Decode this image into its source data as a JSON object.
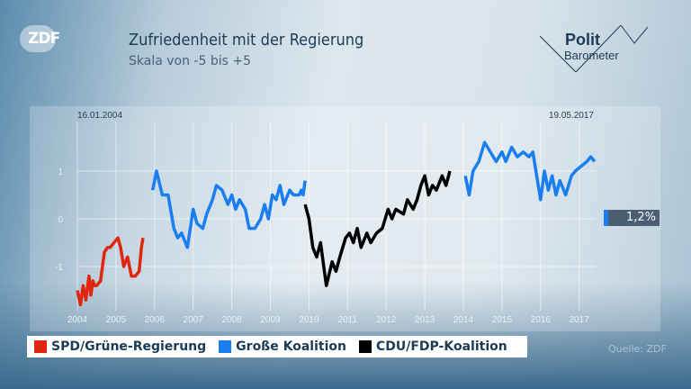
{
  "header": {
    "logo": "ZDF",
    "title": "Zufriedenheit mit der Regierung",
    "subtitle": "Skala von -5 bis +5",
    "brand_line1": "Polit",
    "brand_line2": "Barometer"
  },
  "source": "Quelle: ZDF",
  "badge": {
    "value": "1,2%",
    "color": "#1a7ef0"
  },
  "chart_data": {
    "type": "line",
    "title": "Zufriedenheit mit der Regierung",
    "subtitle": "Skala von -5 bis +5",
    "start_label": "16.01.2004",
    "end_label": "19.05.2017",
    "xlim": [
      2003.75,
      2018.0
    ],
    "ylim": [
      -2.05,
      2.45
    ],
    "x_ticks": [
      2004,
      2005,
      2006,
      2007,
      2008,
      2009,
      2010,
      2011,
      2012,
      2013,
      2014,
      2015,
      2016,
      2017
    ],
    "y_ticks": [
      1,
      0,
      -1
    ],
    "grid": true,
    "legend_position": "bottom",
    "series": [
      {
        "name": "SPD/Grüne-Regierung",
        "color": "#e0260e",
        "x": [
          2004.0,
          2004.08,
          2004.15,
          2004.22,
          2004.3,
          2004.35,
          2004.4,
          2004.45,
          2004.5,
          2004.6,
          2004.7,
          2004.78,
          2004.85,
          2004.95,
          2005.05,
          2005.12,
          2005.2,
          2005.3,
          2005.4,
          2005.5,
          2005.6,
          2005.66,
          2005.7
        ],
        "y": [
          -1.5,
          -1.8,
          -1.4,
          -1.7,
          -1.2,
          -1.6,
          -1.3,
          -1.4,
          -1.4,
          -1.3,
          -0.7,
          -0.6,
          -0.6,
          -0.5,
          -0.4,
          -0.6,
          -1.0,
          -0.8,
          -1.2,
          -1.2,
          -1.1,
          -0.6,
          -0.4
        ]
      },
      {
        "name": "Große Koalition",
        "color": "#1a7ef0",
        "x": [
          2005.95,
          2006.05,
          2006.2,
          2006.35,
          2006.5,
          2006.6,
          2006.7,
          2006.85,
          2007.0,
          2007.1,
          2007.25,
          2007.35,
          2007.5,
          2007.6,
          2007.75,
          2007.9,
          2008.0,
          2008.1,
          2008.2,
          2008.35,
          2008.45,
          2008.6,
          2008.75,
          2008.85,
          2008.95,
          2009.05,
          2009.15,
          2009.25,
          2009.35,
          2009.5,
          2009.6,
          2009.75,
          2009.8,
          2009.85,
          2009.9
        ],
        "y": [
          0.6,
          1.0,
          0.5,
          0.5,
          -0.2,
          -0.4,
          -0.3,
          -0.6,
          0.2,
          -0.1,
          -0.2,
          0.1,
          0.4,
          0.7,
          0.6,
          0.3,
          0.5,
          0.2,
          0.4,
          0.2,
          -0.2,
          -0.2,
          0.0,
          0.3,
          0.0,
          0.5,
          0.4,
          0.7,
          0.3,
          0.6,
          0.5,
          0.5,
          0.6,
          0.5,
          0.8
        ]
      },
      {
        "name": "CDU/FDP-Koalition",
        "color": "#000000",
        "x": [
          2009.9,
          2010.0,
          2010.1,
          2010.2,
          2010.3,
          2010.45,
          2010.6,
          2010.7,
          2010.8,
          2010.95,
          2011.05,
          2011.15,
          2011.25,
          2011.35,
          2011.5,
          2011.6,
          2011.75,
          2011.9,
          2012.05,
          2012.15,
          2012.25,
          2012.45,
          2012.55,
          2012.7,
          2012.8,
          2012.9,
          2013.0,
          2013.1,
          2013.2,
          2013.3,
          2013.45,
          2013.55,
          2013.65
        ],
        "y": [
          0.3,
          0.0,
          -0.6,
          -0.8,
          -0.5,
          -1.4,
          -0.9,
          -1.1,
          -0.8,
          -0.4,
          -0.3,
          -0.5,
          -0.2,
          -0.6,
          -0.3,
          -0.5,
          -0.3,
          -0.2,
          0.2,
          0.0,
          0.2,
          0.1,
          0.4,
          0.2,
          0.4,
          0.7,
          0.9,
          0.5,
          0.7,
          0.6,
          0.9,
          0.7,
          1.0
        ]
      },
      {
        "name": "Große Koalition",
        "color": "#1a7ef0",
        "x": [
          2014.05,
          2014.15,
          2014.25,
          2014.4,
          2014.55,
          2014.7,
          2014.85,
          2015.0,
          2015.1,
          2015.25,
          2015.4,
          2015.55,
          2015.7,
          2015.8,
          2015.9,
          2016.0,
          2016.1,
          2016.2,
          2016.3,
          2016.4,
          2016.5,
          2016.65,
          2016.8,
          2016.9,
          2017.05,
          2017.2,
          2017.3,
          2017.4
        ],
        "y": [
          0.9,
          0.5,
          1.0,
          1.2,
          1.6,
          1.4,
          1.2,
          1.4,
          1.2,
          1.5,
          1.3,
          1.4,
          1.3,
          1.4,
          0.9,
          0.4,
          1.0,
          0.6,
          0.9,
          0.5,
          0.8,
          0.5,
          0.9,
          1.0,
          1.1,
          1.2,
          1.3,
          1.2
        ]
      }
    ]
  }
}
